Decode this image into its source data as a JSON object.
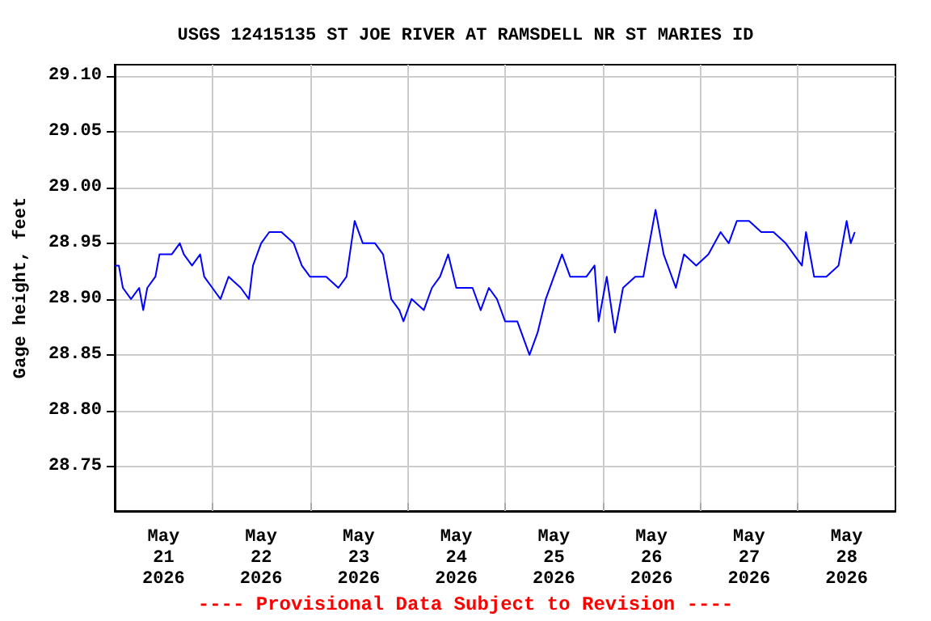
{
  "chart_data": {
    "type": "line",
    "title": "USGS 12415135 ST JOE RIVER AT RAMSDELL NR ST MARIES ID",
    "ylabel": "Gage height, feet",
    "annotations": [
      "---- Provisional Data Subject to Revision ----"
    ],
    "xlim": [
      "2026-05-21T00:00",
      "2026-05-29T00:00"
    ],
    "xticks": [
      {
        "value": "2026-05-21T12:00",
        "label": "May\n21\n2026"
      },
      {
        "value": "2026-05-22T12:00",
        "label": "May\n22\n2026"
      },
      {
        "value": "2026-05-23T12:00",
        "label": "May\n23\n2026"
      },
      {
        "value": "2026-05-24T12:00",
        "label": "May\n24\n2026"
      },
      {
        "value": "2026-05-25T12:00",
        "label": "May\n25\n2026"
      },
      {
        "value": "2026-05-26T12:00",
        "label": "May\n26\n2026"
      },
      {
        "value": "2026-05-27T12:00",
        "label": "May\n27\n2026"
      },
      {
        "value": "2026-05-28T12:00",
        "label": "May\n28\n2026"
      },
      {
        "value": "2026-05-22T00:00",
        "label": null
      },
      {
        "value": "2026-05-23T00:00",
        "label": null
      },
      {
        "value": "2026-05-24T00:00",
        "label": null
      },
      {
        "value": "2026-05-25T00:00",
        "label": null
      },
      {
        "value": "2026-05-26T00:00",
        "label": null
      },
      {
        "value": "2026-05-27T00:00",
        "label": null
      },
      {
        "value": "2026-05-28T00:00",
        "label": null
      }
    ],
    "ylim": [
      28.71,
      29.11
    ],
    "yticks": [
      {
        "value": 28.75,
        "label": "28.75"
      },
      {
        "value": 28.8,
        "label": "28.80"
      },
      {
        "value": 28.85,
        "label": "28.85"
      },
      {
        "value": 28.9,
        "label": "28.90"
      },
      {
        "value": 28.95,
        "label": "28.95"
      },
      {
        "value": 29.0,
        "label": "29.00"
      },
      {
        "value": 29.05,
        "label": "29.05"
      },
      {
        "value": 29.1,
        "label": "29.10"
      }
    ],
    "grid": true,
    "marker": "none",
    "line_style": "solid",
    "series": [
      {
        "color": "#0000ff",
        "x": [
          "2026-05-21T00:00",
          "2026-05-21T01:00",
          "2026-05-21T02:00",
          "2026-05-21T04:00",
          "2026-05-21T06:00",
          "2026-05-21T07:00",
          "2026-05-21T08:00",
          "2026-05-21T10:00",
          "2026-05-21T11:00",
          "2026-05-21T14:00",
          "2026-05-21T16:00",
          "2026-05-21T17:00",
          "2026-05-21T19:00",
          "2026-05-21T21:00",
          "2026-05-21T22:00",
          "2026-05-22T00:00",
          "2026-05-22T02:00",
          "2026-05-22T04:00",
          "2026-05-22T07:00",
          "2026-05-22T09:00",
          "2026-05-22T10:00",
          "2026-05-22T12:00",
          "2026-05-22T14:00",
          "2026-05-22T17:00",
          "2026-05-22T20:00",
          "2026-05-22T22:00",
          "2026-05-23T00:00",
          "2026-05-23T04:00",
          "2026-05-23T07:00",
          "2026-05-23T09:00",
          "2026-05-23T11:00",
          "2026-05-23T13:00",
          "2026-05-23T16:00",
          "2026-05-23T18:00",
          "2026-05-23T19:00",
          "2026-05-23T20:00",
          "2026-05-23T22:00",
          "2026-05-23T23:00",
          "2026-05-24T01:00",
          "2026-05-24T04:00",
          "2026-05-24T06:00",
          "2026-05-24T08:00",
          "2026-05-24T10:00",
          "2026-05-24T12:00",
          "2026-05-24T16:00",
          "2026-05-24T18:00",
          "2026-05-24T20:00",
          "2026-05-24T22:00",
          "2026-05-25T00:00",
          "2026-05-25T03:00",
          "2026-05-25T06:00",
          "2026-05-25T08:00",
          "2026-05-25T10:00",
          "2026-05-25T12:00",
          "2026-05-25T14:00",
          "2026-05-25T16:00",
          "2026-05-25T20:00",
          "2026-05-25T22:00",
          "2026-05-25T23:00",
          "2026-05-26T01:00",
          "2026-05-26T03:00",
          "2026-05-26T05:00",
          "2026-05-26T08:00",
          "2026-05-26T10:00",
          "2026-05-26T12:00",
          "2026-05-26T13:00",
          "2026-05-26T15:00",
          "2026-05-26T18:00",
          "2026-05-26T20:00",
          "2026-05-26T23:00",
          "2026-05-27T02:00",
          "2026-05-27T05:00",
          "2026-05-27T07:00",
          "2026-05-27T09:00",
          "2026-05-27T12:00",
          "2026-05-27T15:00",
          "2026-05-27T18:00",
          "2026-05-27T21:00",
          "2026-05-27T23:00",
          "2026-05-28T01:00",
          "2026-05-28T02:00",
          "2026-05-28T04:00",
          "2026-05-28T07:00",
          "2026-05-28T10:00",
          "2026-05-28T12:00",
          "2026-05-28T13:00",
          "2026-05-28T14:00"
        ],
        "values": [
          28.93,
          28.93,
          28.91,
          28.9,
          28.91,
          28.89,
          28.91,
          28.92,
          28.94,
          28.94,
          28.95,
          28.94,
          28.93,
          28.94,
          28.92,
          28.91,
          28.9,
          28.92,
          28.91,
          28.9,
          28.93,
          28.95,
          28.96,
          28.96,
          28.95,
          28.93,
          28.92,
          28.92,
          28.91,
          28.92,
          28.97,
          28.95,
          28.95,
          28.94,
          28.92,
          28.9,
          28.89,
          28.88,
          28.9,
          28.89,
          28.91,
          28.92,
          28.94,
          28.91,
          28.91,
          28.89,
          28.91,
          28.9,
          28.88,
          28.88,
          28.85,
          28.87,
          28.9,
          28.92,
          28.94,
          28.92,
          28.92,
          28.93,
          28.88,
          28.92,
          28.87,
          28.91,
          28.92,
          28.92,
          28.96,
          28.98,
          28.94,
          28.91,
          28.94,
          28.93,
          28.94,
          28.96,
          28.95,
          28.97,
          28.97,
          28.96,
          28.96,
          28.95,
          28.94,
          28.93,
          28.96,
          28.92,
          28.92,
          28.93,
          28.97,
          28.95,
          28.96
        ]
      }
    ]
  }
}
